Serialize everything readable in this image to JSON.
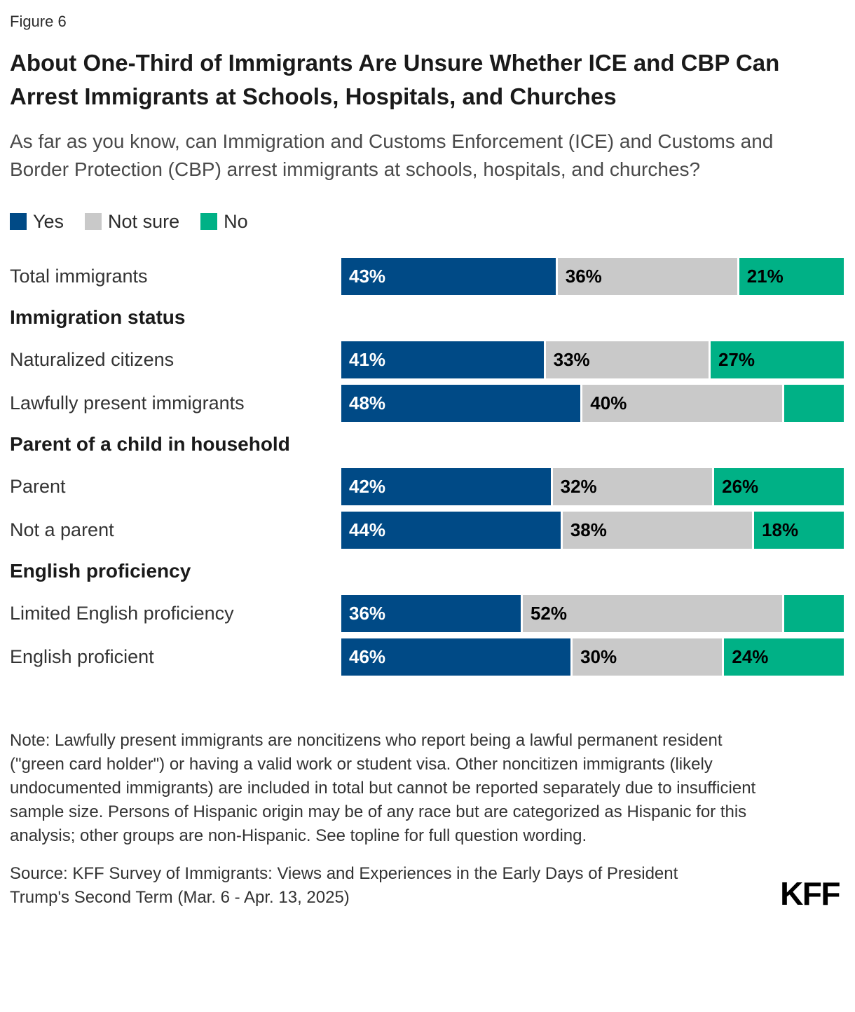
{
  "header": {
    "figure_label": "Figure 6",
    "title": "About One-Third of Immigrants Are Unsure Whether ICE and CBP Can Arrest Immigrants at Schools, Hospitals, and Churches",
    "subtitle": "As far as you know, can Immigration and Customs Enforcement (ICE) and Customs and Border Protection (CBP) arrest immigrants at schools, hospitals, and churches?"
  },
  "chart_data": {
    "type": "bar",
    "orientation": "horizontal",
    "stacked": true,
    "legend_position": "top",
    "value_unit": "percent",
    "x_range": [
      0,
      100
    ],
    "legend": [
      {
        "label": "Yes",
        "color": "#004a86",
        "label_color": "#ffffff"
      },
      {
        "label": "Not sure",
        "color": "#c9c9c9",
        "label_color": "#000000"
      },
      {
        "label": "No",
        "color": "#00b186",
        "label_color": "#000000"
      }
    ],
    "rows": [
      {
        "type": "bar",
        "label": "Total immigrants",
        "values": [
          43,
          36,
          21
        ],
        "labels": [
          "43%",
          "36%",
          "21%"
        ]
      },
      {
        "type": "header",
        "label": "Immigration status"
      },
      {
        "type": "bar",
        "label": "Naturalized citizens",
        "values": [
          41,
          33,
          27
        ],
        "labels": [
          "41%",
          "33%",
          "27%"
        ]
      },
      {
        "type": "bar",
        "label": "Lawfully present immigrants",
        "values": [
          48,
          40,
          12
        ],
        "labels": [
          "48%",
          "40%",
          ""
        ]
      },
      {
        "type": "header",
        "label": "Parent of a child in household"
      },
      {
        "type": "bar",
        "label": "Parent",
        "values": [
          42,
          32,
          26
        ],
        "labels": [
          "42%",
          "32%",
          "26%"
        ]
      },
      {
        "type": "bar",
        "label": "Not a parent",
        "values": [
          44,
          38,
          18
        ],
        "labels": [
          "44%",
          "38%",
          "18%"
        ]
      },
      {
        "type": "header",
        "label": "English proficiency"
      },
      {
        "type": "bar",
        "label": "Limited English proficiency",
        "values": [
          36,
          52,
          12
        ],
        "labels": [
          "36%",
          "52%",
          ""
        ]
      },
      {
        "type": "bar",
        "label": "English proficient",
        "values": [
          46,
          30,
          24
        ],
        "labels": [
          "46%",
          "30%",
          "24%"
        ]
      }
    ]
  },
  "footer": {
    "note": "Note: Lawfully present immigrants are noncitizens who report being a lawful permanent resident (\"green card holder\") or having a valid work or student visa. Other noncitizen immigrants (likely undocumented immigrants) are included in total but cannot be reported separately due to insufficient sample size. Persons of Hispanic origin may be of any race but are categorized as Hispanic for this analysis; other groups are non-Hispanic. See topline for full question wording.",
    "source": "Source: KFF Survey of Immigrants: Views and Experiences in the Early Days of President Trump's Second Term (Mar. 6 - Apr. 13, 2025)",
    "logo": "KFF"
  }
}
